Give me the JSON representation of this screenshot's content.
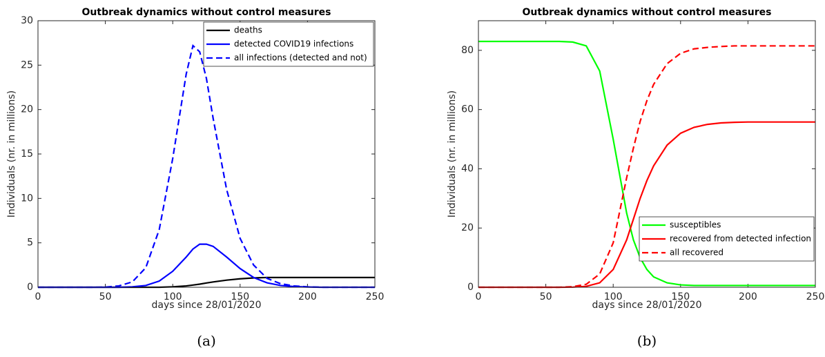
{
  "chart_data": [
    {
      "type": "line",
      "title": "Outbreak dynamics without control measures",
      "xlabel": "days since 28/01/2020",
      "ylabel": "Individuals (nr. in millions)",
      "caption": "(a)",
      "xlim": [
        0,
        250
      ],
      "xticks": [
        0,
        50,
        100,
        150,
        200,
        250
      ],
      "ylim": [
        0,
        30
      ],
      "yticks": [
        0,
        5,
        10,
        15,
        20,
        25,
        30
      ],
      "legend": "upper right",
      "x": [
        0,
        10,
        20,
        30,
        40,
        50,
        60,
        70,
        80,
        90,
        100,
        110,
        115,
        120,
        125,
        130,
        140,
        150,
        160,
        170,
        180,
        190,
        200,
        210,
        220,
        230,
        240,
        250
      ],
      "series": [
        {
          "name": "deaths",
          "color": "#000000",
          "linestyle": "solid",
          "values": [
            0,
            0,
            0,
            0,
            0,
            0,
            0,
            0,
            0,
            0,
            0.05,
            0.15,
            0.25,
            0.35,
            0.48,
            0.6,
            0.8,
            0.95,
            1.05,
            1.1,
            1.1,
            1.1,
            1.1,
            1.1,
            1.1,
            1.1,
            1.1,
            1.1
          ]
        },
        {
          "name": "detected COVID19 infections",
          "color": "#0000ff",
          "linestyle": "solid",
          "values": [
            0,
            0,
            0,
            0,
            0,
            0,
            0,
            0.05,
            0.2,
            0.7,
            1.8,
            3.4,
            4.3,
            4.85,
            4.85,
            4.6,
            3.4,
            2.1,
            1.1,
            0.5,
            0.2,
            0.08,
            0.03,
            0,
            0,
            0,
            0,
            0
          ]
        },
        {
          "name": "all infections (detected and not)",
          "color": "#0000ff",
          "linestyle": "dashed",
          "values": [
            0,
            0,
            0,
            0,
            0,
            0.02,
            0.15,
            0.6,
            2.2,
            6.5,
            14.5,
            24,
            27.2,
            26.5,
            23.5,
            19,
            11,
            5.5,
            2.5,
            1,
            0.4,
            0.15,
            0.05,
            0,
            0,
            0,
            0,
            0
          ]
        }
      ]
    },
    {
      "type": "line",
      "title": "Outbreak dynamics without control measures",
      "xlabel": "days since 28/01/2020",
      "ylabel": "Individuals (nr. in millions)",
      "caption": "(b)",
      "xlim": [
        0,
        250
      ],
      "xticks": [
        0,
        50,
        100,
        150,
        200,
        250
      ],
      "ylim": [
        0,
        90
      ],
      "yticks": [
        0,
        20,
        40,
        60,
        80
      ],
      "legend": "lower right",
      "x": [
        0,
        10,
        20,
        30,
        40,
        50,
        60,
        70,
        80,
        90,
        100,
        110,
        115,
        120,
        125,
        130,
        140,
        150,
        160,
        170,
        180,
        190,
        200,
        210,
        220,
        230,
        240,
        250
      ],
      "series": [
        {
          "name": "susceptibles",
          "color": "#00ff00",
          "linestyle": "solid",
          "values": [
            83,
            83,
            83,
            83,
            83,
            83,
            83,
            82.8,
            81.5,
            73,
            50,
            25,
            16,
            10,
            6,
            3.5,
            1.5,
            0.8,
            0.6,
            0.6,
            0.6,
            0.6,
            0.6,
            0.6,
            0.6,
            0.6,
            0.6,
            0.6
          ]
        },
        {
          "name": "recovered from detected infection",
          "color": "#ff0000",
          "linestyle": "solid",
          "values": [
            0,
            0,
            0,
            0,
            0,
            0,
            0,
            0.05,
            0.3,
            1.5,
            6,
            16,
            23,
            30,
            36,
            41,
            48,
            52,
            54,
            55,
            55.5,
            55.7,
            55.8,
            55.8,
            55.8,
            55.8,
            55.8,
            55.8
          ]
        },
        {
          "name": "all recovered",
          "color": "#ff0000",
          "linestyle": "dashed",
          "values": [
            0,
            0,
            0,
            0,
            0,
            0,
            0,
            0.2,
            1,
            4.5,
            15,
            37,
            47,
            56,
            63,
            68.5,
            75.5,
            79,
            80.5,
            81,
            81.3,
            81.5,
            81.5,
            81.5,
            81.5,
            81.5,
            81.5,
            81.5
          ]
        }
      ]
    }
  ]
}
